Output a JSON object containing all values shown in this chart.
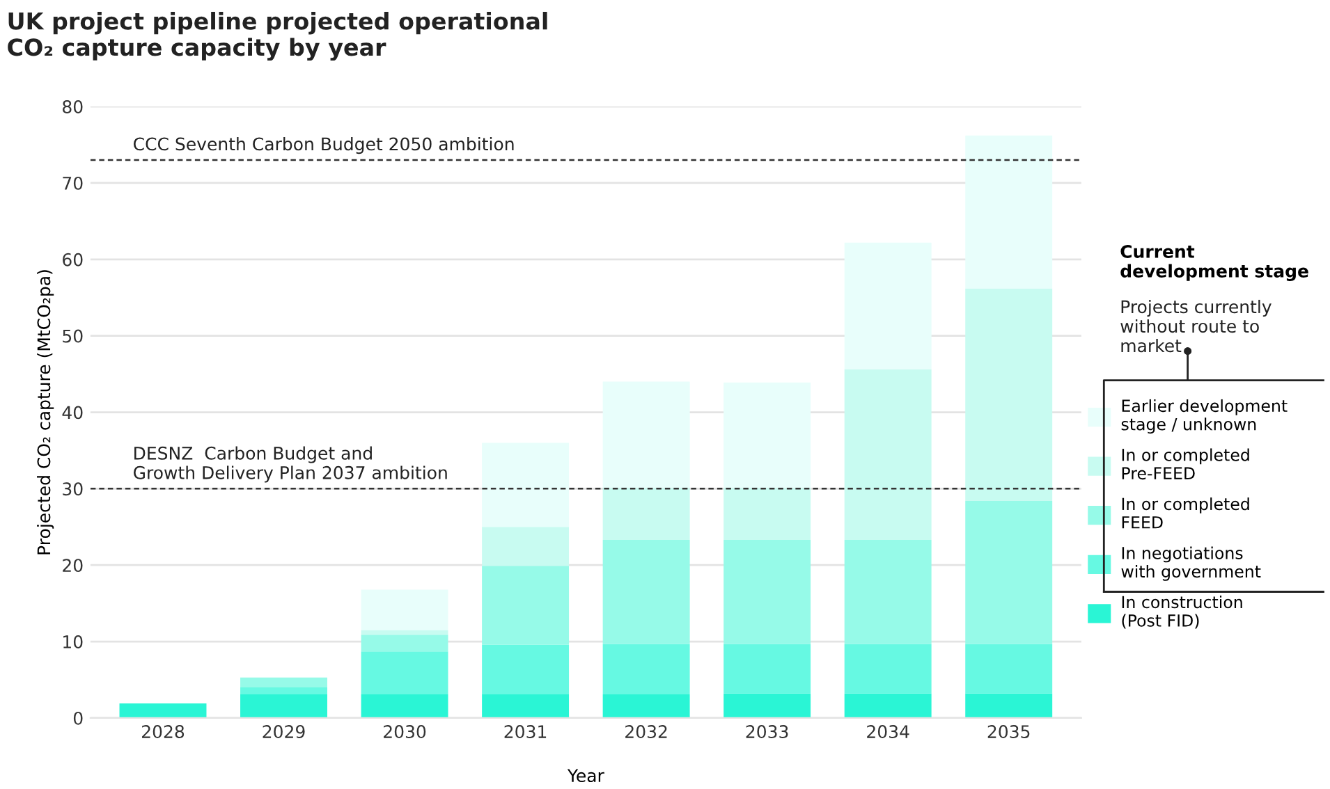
{
  "chart_data": {
    "type": "bar",
    "stacked": true,
    "title": "UK project pipeline projected operational\nCO₂ capture capacity by year",
    "xlabel": "Year",
    "ylabel": "Projected CO₂ capture (MtCO₂pa)",
    "categories": [
      "2028",
      "2029",
      "2030",
      "2031",
      "2032",
      "2033",
      "2034",
      "2035"
    ],
    "series": [
      {
        "name": "In construction\n(Post FID)",
        "color": "#2af5d5",
        "values": [
          1.9,
          3.1,
          3.1,
          3.1,
          3.1,
          3.2,
          3.2,
          3.2
        ]
      },
      {
        "name": "In negotiations\nwith government",
        "color": "#66f9e2",
        "values": [
          0,
          0.9,
          5.6,
          6.5,
          6.6,
          6.5,
          6.5,
          6.5
        ]
      },
      {
        "name": "In or completed\nFEED",
        "color": "#96fae8",
        "values": [
          0,
          1.3,
          2.2,
          10.3,
          13.6,
          13.6,
          13.6,
          18.7
        ]
      },
      {
        "name": "In or completed\nPre-FEED",
        "color": "#c8fbf1",
        "values": [
          0,
          0,
          0.6,
          5.1,
          6.8,
          6.8,
          22.3,
          27.8
        ]
      },
      {
        "name": "Earlier development\nstage / unknown",
        "color": "#e8fefb",
        "values": [
          0,
          0,
          5.3,
          11,
          13.9,
          13.8,
          16.6,
          20
        ]
      }
    ],
    "ylim": [
      0,
      80
    ],
    "yticks": [
      0,
      10,
      20,
      30,
      40,
      50,
      60,
      70,
      80
    ],
    "grid": "y",
    "legend": "right",
    "legend_title": "Current\ndevelopment stage",
    "annotations": [
      "Projects currently\nwithout route to\nmarket"
    ],
    "ref_lines": [
      {
        "axis": "y",
        "value": 73,
        "label": "CCC Seventh Carbon Budget 2050 ambition",
        "color": "#333333",
        "line_style": "dashed"
      },
      {
        "axis": "y",
        "value": 30,
        "label": "DESNZ  Carbon Budget and\nGrowth Delivery Plan 2037 ambition",
        "color": "#333333",
        "line_style": "dashed"
      }
    ]
  }
}
